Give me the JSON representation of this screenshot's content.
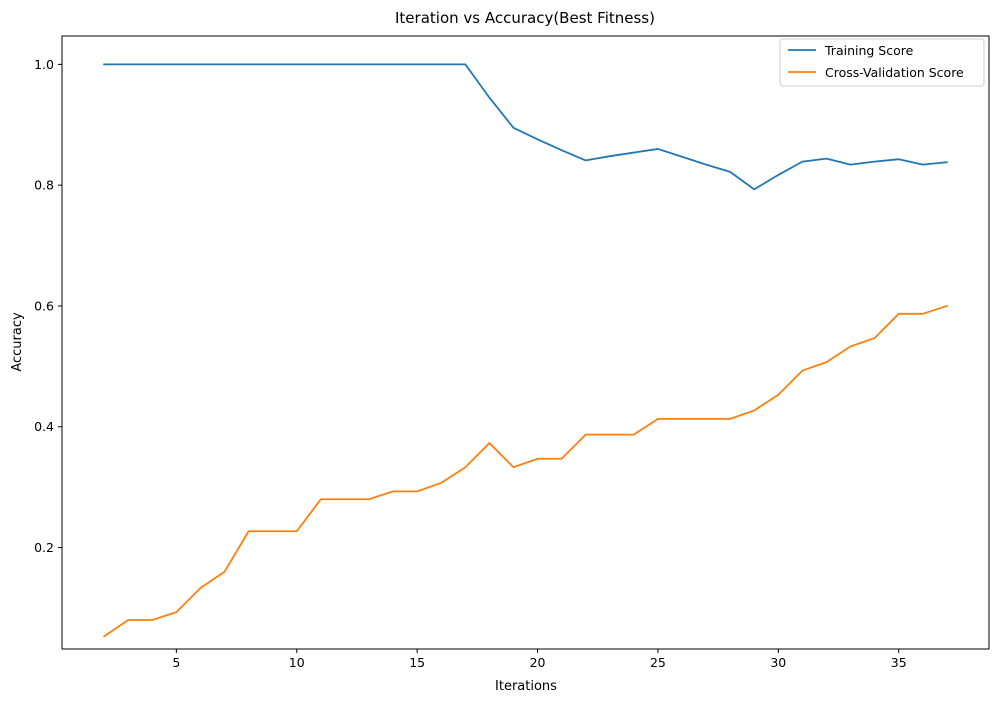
{
  "chart_data": {
    "type": "line",
    "title": "Iteration vs Accuracy(Best Fitness)",
    "xlabel": "Iterations",
    "ylabel": "Accuracy",
    "xlim": [
      0.25,
      38.75
    ],
    "ylim": [
      0.032,
      1.047
    ],
    "x_ticks": [
      5,
      10,
      15,
      20,
      25,
      30,
      35
    ],
    "y_ticks": [
      0.2,
      0.4,
      0.6,
      0.8,
      1.0
    ],
    "x_tick_labels": [
      "5",
      "10",
      "15",
      "20",
      "25",
      "30",
      "35"
    ],
    "y_tick_labels": [
      "0.2",
      "0.4",
      "0.6",
      "0.8",
      "1.0"
    ],
    "grid": false,
    "legend_position": "top-right",
    "x": [
      2,
      3,
      4,
      5,
      6,
      7,
      8,
      9,
      10,
      11,
      12,
      13,
      14,
      15,
      16,
      17,
      18,
      19,
      20,
      21,
      22,
      23,
      24,
      25,
      26,
      27,
      28,
      29,
      30,
      31,
      32,
      33,
      34,
      35,
      36,
      37
    ],
    "series": [
      {
        "name": "Training Score",
        "color": "#1f77b4",
        "values": [
          1.0,
          1.0,
          1.0,
          1.0,
          1.0,
          1.0,
          1.0,
          1.0,
          1.0,
          1.0,
          1.0,
          1.0,
          1.0,
          1.0,
          1.0,
          1.0,
          0.945,
          0.895,
          0.876,
          0.858,
          0.841,
          0.848,
          0.854,
          0.86,
          0.847,
          0.834,
          0.822,
          0.793,
          0.817,
          0.839,
          0.844,
          0.834,
          0.839,
          0.843,
          0.834,
          0.838
        ]
      },
      {
        "name": "Cross-Validation Score",
        "color": "#ff7f0e",
        "values": [
          0.053,
          0.08,
          0.08,
          0.093,
          0.133,
          0.16,
          0.227,
          0.227,
          0.227,
          0.28,
          0.28,
          0.28,
          0.293,
          0.293,
          0.307,
          0.333,
          0.373,
          0.333,
          0.347,
          0.347,
          0.387,
          0.387,
          0.387,
          0.413,
          0.413,
          0.413,
          0.413,
          0.427,
          0.453,
          0.493,
          0.507,
          0.533,
          0.547,
          0.587,
          0.587,
          0.6
        ]
      }
    ]
  }
}
